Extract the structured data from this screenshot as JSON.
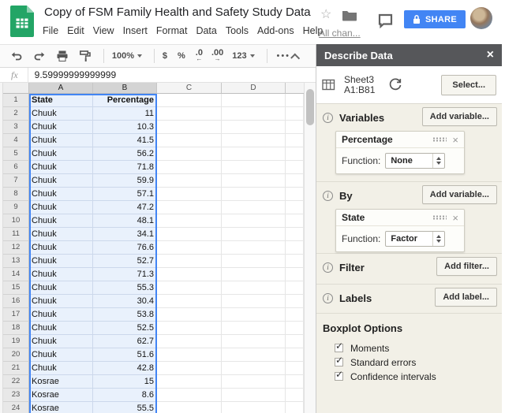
{
  "header": {
    "title": "Copy of FSM Family Health and Safety Study Data",
    "menu": [
      "File",
      "Edit",
      "View",
      "Insert",
      "Format",
      "Data",
      "Tools",
      "Add-ons",
      "Help"
    ],
    "saved_status": "All chan...",
    "share_label": "SHARE"
  },
  "toolbar": {
    "zoom": "100%",
    "currency": "$",
    "percent": "%",
    "dec0": ".0",
    "dec0_arrow": "←",
    "dec00": ".00",
    "dec00_arrow": "→",
    "fmt123": "123"
  },
  "formula": {
    "fx_label": "fx",
    "value": "9.59999999999999"
  },
  "grid": {
    "col_headers": [
      "A",
      "B",
      "C",
      "D"
    ],
    "rows": [
      {
        "n": "1",
        "a": "State",
        "b": "Percentage",
        "header": true
      },
      {
        "n": "2",
        "a": "Chuuk",
        "b": "11"
      },
      {
        "n": "3",
        "a": "Chuuk",
        "b": "10.3"
      },
      {
        "n": "4",
        "a": "Chuuk",
        "b": "41.5"
      },
      {
        "n": "5",
        "a": "Chuuk",
        "b": "56.2"
      },
      {
        "n": "6",
        "a": "Chuuk",
        "b": "71.8"
      },
      {
        "n": "7",
        "a": "Chuuk",
        "b": "59.9"
      },
      {
        "n": "8",
        "a": "Chuuk",
        "b": "57.1"
      },
      {
        "n": "9",
        "a": "Chuuk",
        "b": "47.2"
      },
      {
        "n": "10",
        "a": "Chuuk",
        "b": "48.1"
      },
      {
        "n": "11",
        "a": "Chuuk",
        "b": "34.1"
      },
      {
        "n": "12",
        "a": "Chuuk",
        "b": "76.6"
      },
      {
        "n": "13",
        "a": "Chuuk",
        "b": "52.7"
      },
      {
        "n": "14",
        "a": "Chuuk",
        "b": "71.3"
      },
      {
        "n": "15",
        "a": "Chuuk",
        "b": "55.3"
      },
      {
        "n": "16",
        "a": "Chuuk",
        "b": "30.4"
      },
      {
        "n": "17",
        "a": "Chuuk",
        "b": "53.8"
      },
      {
        "n": "18",
        "a": "Chuuk",
        "b": "52.5"
      },
      {
        "n": "19",
        "a": "Chuuk",
        "b": "62.7"
      },
      {
        "n": "20",
        "a": "Chuuk",
        "b": "51.6"
      },
      {
        "n": "21",
        "a": "Chuuk",
        "b": "42.8"
      },
      {
        "n": "22",
        "a": "Kosrae",
        "b": "15"
      },
      {
        "n": "23",
        "a": "Kosrae",
        "b": "8.6"
      },
      {
        "n": "24",
        "a": "Kosrae",
        "b": "55.5"
      }
    ]
  },
  "sidebar": {
    "title": "Describe Data",
    "sheet": {
      "name": "Sheet3",
      "range": "A1:B81",
      "select_label": "Select..."
    },
    "sections": {
      "variables": {
        "label": "Variables",
        "button": "Add variable...",
        "card": {
          "title": "Percentage",
          "function_label": "Function:",
          "function_value": "None"
        }
      },
      "by": {
        "label": "By",
        "button": "Add variable...",
        "card": {
          "title": "State",
          "function_label": "Function:",
          "function_value": "Factor"
        }
      },
      "filter": {
        "label": "Filter",
        "button": "Add filter..."
      },
      "labels": {
        "label": "Labels",
        "button": "Add label..."
      }
    },
    "boxplot": {
      "title": "Boxplot Options",
      "options": [
        {
          "label": "Moments",
          "checked": true
        },
        {
          "label": "Standard errors",
          "checked": true
        },
        {
          "label": "Confidence intervals",
          "checked": true
        }
      ]
    }
  },
  "icons": {
    "star": "☆",
    "close": "×",
    "check": "✓",
    "info": "i",
    "more": "•••"
  },
  "colors": {
    "accent_blue": "#4285f4",
    "sheets_green": "#23A566",
    "sidebar_header": "#56575a",
    "selection_tint": "#e9f1fc"
  }
}
